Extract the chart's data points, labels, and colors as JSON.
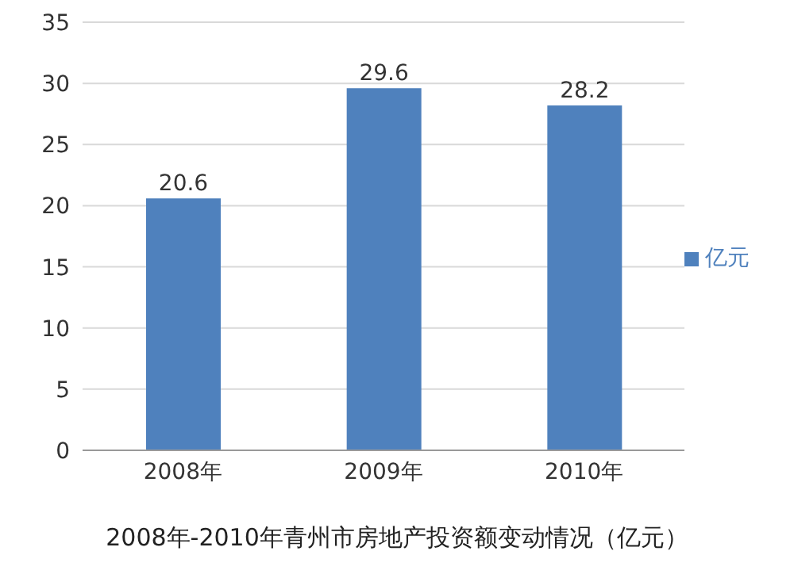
{
  "chart_data": {
    "type": "bar",
    "title": "2008年-2010年青州市房地产投资额变动情况（亿元）",
    "categories": [
      "2008年",
      "2009年",
      "2010年"
    ],
    "series": [
      {
        "name": "亿元",
        "color": "#4f81bd",
        "values": [
          20.6,
          29.6,
          28.2
        ]
      }
    ],
    "ylim": [
      0,
      35
    ],
    "yticks": [
      0,
      5,
      10,
      15,
      20,
      25,
      30,
      35
    ],
    "grid": "y",
    "legend": "right",
    "data_labels": true
  }
}
